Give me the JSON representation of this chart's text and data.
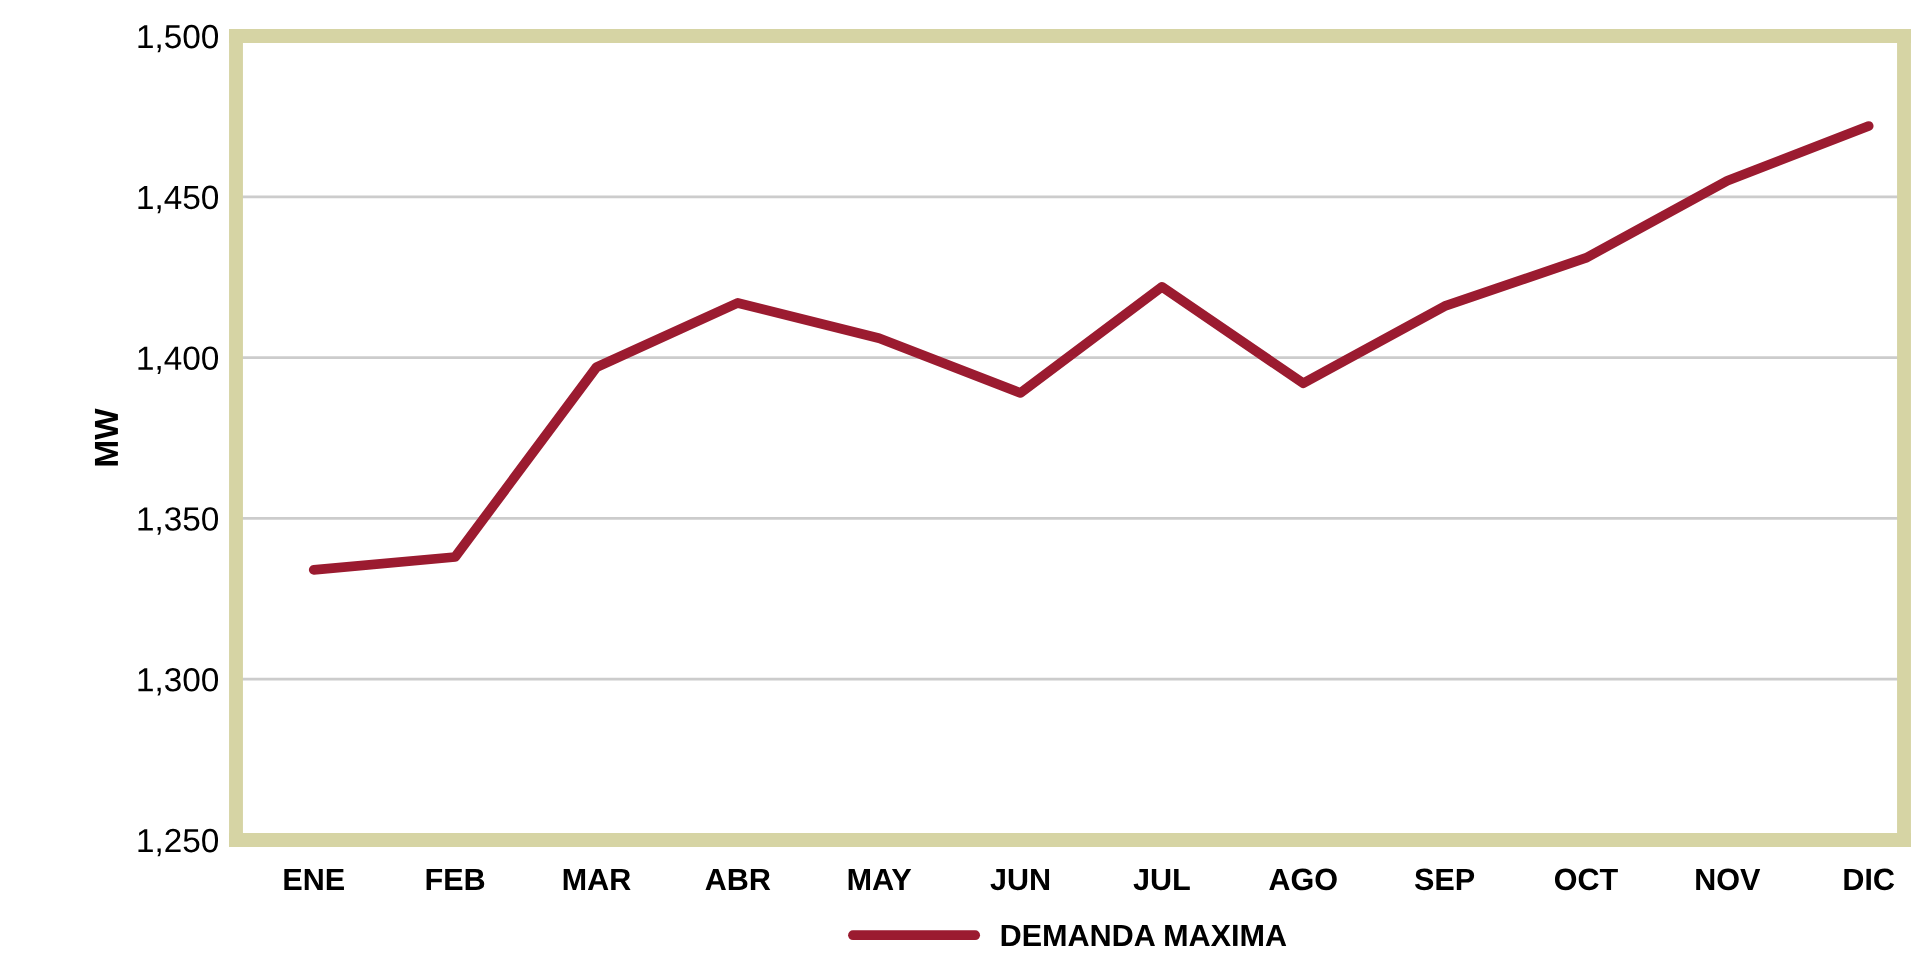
{
  "chart_data": {
    "type": "line",
    "ylabel": "MW",
    "categories": [
      "ENE",
      "FEB",
      "MAR",
      "ABR",
      "MAY",
      "JUN",
      "JUL",
      "AGO",
      "SEP",
      "OCT",
      "NOV",
      "DIC"
    ],
    "series": [
      {
        "name": "DEMANDA MAXIMA",
        "color": "#9b1b30",
        "values": [
          1334,
          1338,
          1397,
          1417,
          1406,
          1389,
          1422,
          1392,
          1416,
          1431,
          1455,
          1472
        ]
      }
    ],
    "ylim": [
      1250,
      1500
    ],
    "yticks": [
      {
        "value": 1250,
        "label": "1,250"
      },
      {
        "value": 1300,
        "label": "1,300"
      },
      {
        "value": 1350,
        "label": "1,350"
      },
      {
        "value": 1400,
        "label": "1,400"
      },
      {
        "value": 1450,
        "label": "1,450"
      },
      {
        "value": 1500,
        "label": "1,500"
      }
    ],
    "grid": "y",
    "legend": "bottom",
    "marker": "none",
    "line_style": "solid"
  }
}
